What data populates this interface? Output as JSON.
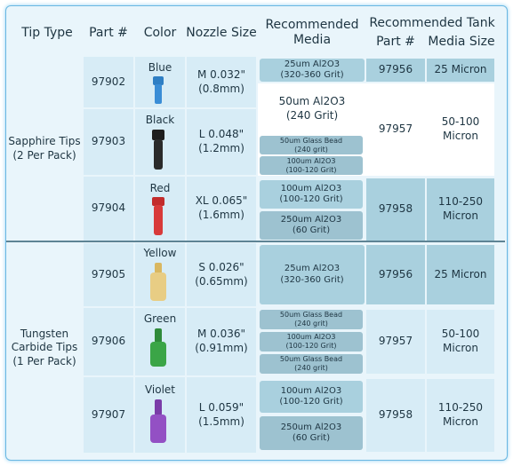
{
  "header": {
    "tip_type": "Tip Type",
    "part": "Part #",
    "color": "Color",
    "nozzle_size": "Nozzle Size",
    "media": "Recommended\nMedia",
    "tank": "Recommended Tank",
    "tank_part": "Part #",
    "tank_media_size": "Media Size"
  },
  "groups": [
    "Sapphire Tips\n(2 Per Pack)",
    "Tungsten\nCarbide Tips\n(1 Per Pack)"
  ],
  "rows": [
    {
      "part": "97902",
      "color": "Blue",
      "nozzle": "M 0.032\"\n(0.8mm)"
    },
    {
      "part": "97903",
      "color": "Black",
      "nozzle": "L 0.048\"\n(1.2mm)"
    },
    {
      "part": "97904",
      "color": "Red",
      "nozzle": "XL 0.065\"\n(1.6mm)"
    },
    {
      "part": "97905",
      "color": "Yellow",
      "nozzle": "S 0.026\"\n(0.65mm)"
    },
    {
      "part": "97906",
      "color": "Green",
      "nozzle": "M 0.036\"\n(0.91mm)"
    },
    {
      "part": "97907",
      "color": "Violet",
      "nozzle": "L 0.059\"\n(1.5mm)"
    }
  ],
  "media": [
    "25um Al2O3\n(320-360 Grit)",
    "50um Al2O3\n(240 Grit)",
    "50um Glass Bead\n(240 grit)",
    "100um Al2O3\n(100-120 Grit)",
    "100um Al2O3\n(100-120 Grit)",
    "250um Al2O3\n(60 Grit)",
    "25um Al2O3\n(320-360 Grit)",
    "50um Glass Bead\n(240 grit)",
    "100um Al2O3\n(100-120 Grit)",
    "50um Glass Bead\n(240 grit)",
    "100um Al2O3\n(100-120 Grit)",
    "250um Al2O3\n(60 Grit)"
  ],
  "tanks": [
    {
      "part": "97956",
      "size": "25 Micron"
    },
    {
      "part": "97957",
      "size": "50-100\nMicron"
    },
    {
      "part": "97958",
      "size": "110-250\nMicron"
    },
    {
      "part": "97956",
      "size": "25 Micron"
    },
    {
      "part": "97957",
      "size": "50-100\nMicron"
    },
    {
      "part": "97958",
      "size": "110-250\nMicron"
    }
  ]
}
